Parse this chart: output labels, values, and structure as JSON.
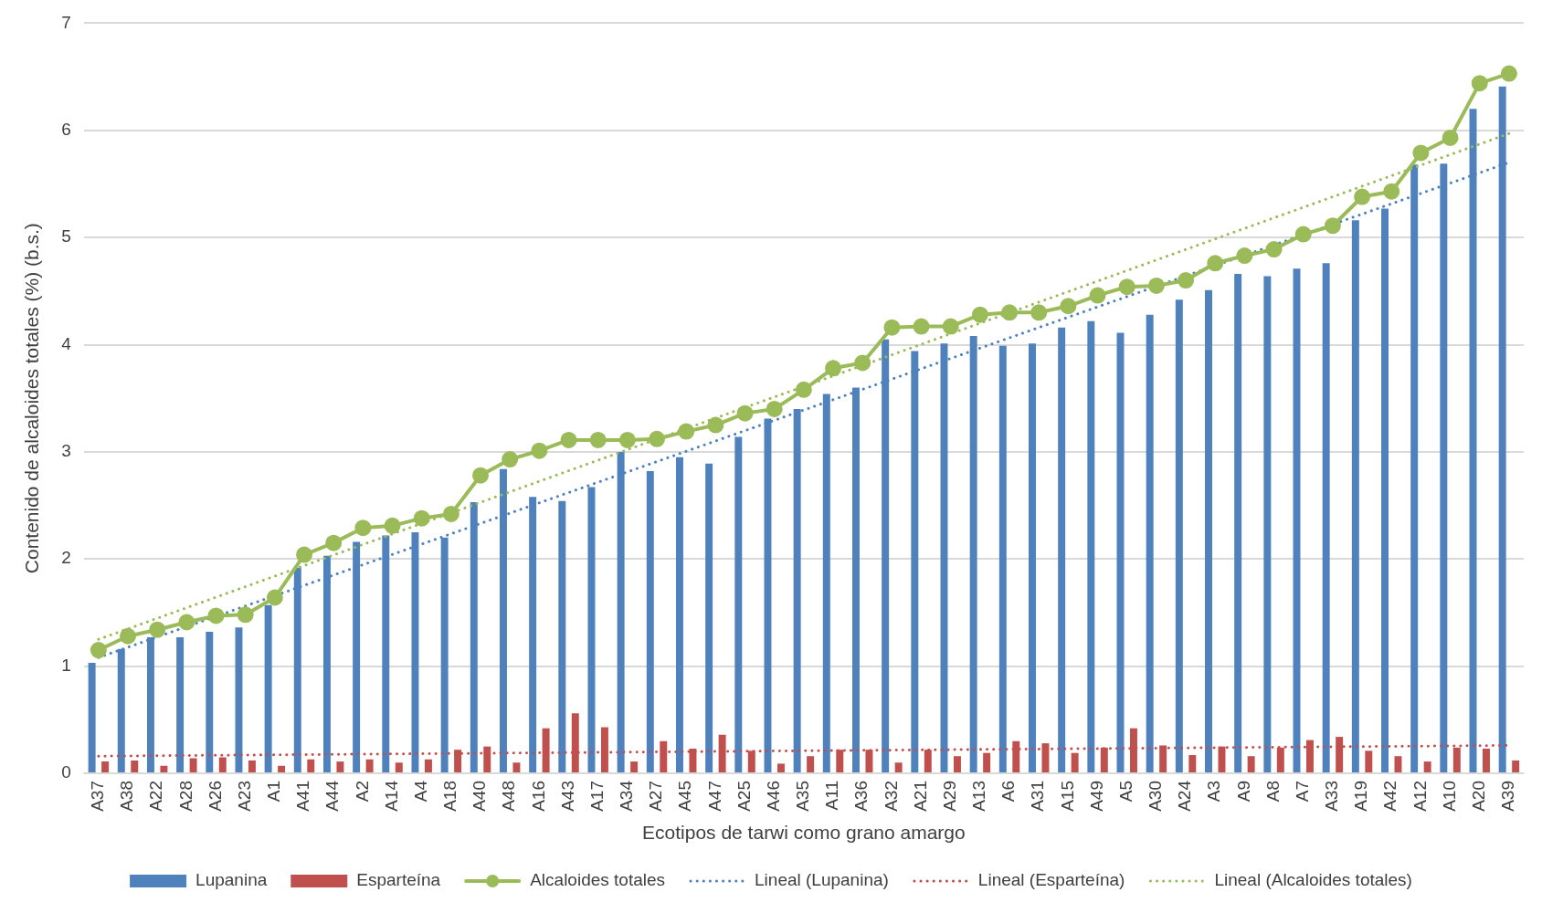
{
  "chart_data": {
    "type": "bar",
    "xlabel": "Ecotipos de tarwi como grano amargo",
    "ylabel": "Contenido de alcaloides totales (%) (b.s.)",
    "categories": [
      "A37",
      "A38",
      "A22",
      "A28",
      "A26",
      "A23",
      "A1",
      "A41",
      "A44",
      "A2",
      "A14",
      "A4",
      "A18",
      "A40",
      "A48",
      "A16",
      "A43",
      "A17",
      "A34",
      "A27",
      "A45",
      "A47",
      "A25",
      "A46",
      "A35",
      "A11",
      "A36",
      "A32",
      "A21",
      "A29",
      "A13",
      "A6",
      "A31",
      "A15",
      "A49",
      "A5",
      "A30",
      "A24",
      "A3",
      "A9",
      "A8",
      "A7",
      "A33",
      "A19",
      "A42",
      "A12",
      "A10",
      "A20",
      "A39"
    ],
    "series": [
      {
        "name": "Lupanina",
        "color": "#4f81bd",
        "values": [
          1.03,
          1.16,
          1.27,
          1.27,
          1.32,
          1.36,
          1.57,
          1.92,
          2.03,
          2.16,
          2.22,
          2.25,
          2.2,
          2.53,
          2.84,
          2.58,
          2.54,
          2.67,
          3.0,
          2.82,
          2.95,
          2.89,
          3.14,
          3.31,
          3.4,
          3.54,
          3.6,
          4.05,
          3.94,
          4.01,
          4.08,
          3.99,
          4.01,
          4.16,
          4.22,
          4.11,
          4.28,
          4.42,
          4.51,
          4.66,
          4.64,
          4.71,
          4.76,
          5.16,
          5.27,
          5.68,
          5.69,
          6.2,
          6.41
        ]
      },
      {
        "name": "Esparteína",
        "color": "#c0504d",
        "values": [
          0.11,
          0.12,
          0.07,
          0.14,
          0.15,
          0.12,
          0.07,
          0.13,
          0.11,
          0.13,
          0.1,
          0.13,
          0.22,
          0.25,
          0.1,
          0.42,
          0.56,
          0.43,
          0.11,
          0.3,
          0.23,
          0.36,
          0.21,
          0.09,
          0.16,
          0.22,
          0.22,
          0.1,
          0.22,
          0.16,
          0.19,
          0.3,
          0.28,
          0.19,
          0.24,
          0.42,
          0.26,
          0.17,
          0.25,
          0.16,
          0.24,
          0.31,
          0.34,
          0.21,
          0.16,
          0.11,
          0.24,
          0.23,
          0.12
        ]
      },
      {
        "name": "Alcaloides totales",
        "type": "line",
        "color": "#9bbb59",
        "marker": "circle",
        "line_style": "solid",
        "values": [
          1.15,
          1.28,
          1.34,
          1.41,
          1.47,
          1.48,
          1.64,
          2.04,
          2.15,
          2.29,
          2.31,
          2.38,
          2.42,
          2.78,
          2.93,
          3.01,
          3.11,
          3.11,
          3.11,
          3.12,
          3.19,
          3.25,
          3.36,
          3.4,
          3.58,
          3.78,
          3.83,
          4.16,
          4.17,
          4.17,
          4.28,
          4.3,
          4.3,
          4.36,
          4.46,
          4.54,
          4.55,
          4.6,
          4.76,
          4.83,
          4.89,
          5.03,
          5.11,
          5.38,
          5.43,
          5.79,
          5.93,
          6.44,
          6.53
        ]
      },
      {
        "name": "Lineal (Lupanina)",
        "type": "line",
        "color": "#4f81bd",
        "marker": "none",
        "line_style": "dotted",
        "x": [
          "A37",
          "A39"
        ],
        "values": [
          1.08,
          5.7
        ]
      },
      {
        "name": "Lineal (Esparteína)",
        "type": "line",
        "color": "#c0504d",
        "marker": "none",
        "line_style": "dotted",
        "x": [
          "A37",
          "A39"
        ],
        "values": [
          0.16,
          0.26
        ]
      },
      {
        "name": "Lineal (Alcaloides totales)",
        "type": "line",
        "color": "#9bbb59",
        "marker": "none",
        "line_style": "dotted",
        "x": [
          "A37",
          "A39"
        ],
        "values": [
          1.25,
          5.97
        ]
      }
    ],
    "ylim": [
      0,
      7
    ],
    "yticks": [
      0,
      1,
      2,
      3,
      4,
      5,
      6,
      7
    ],
    "grid": "y",
    "legend": "bottom"
  }
}
